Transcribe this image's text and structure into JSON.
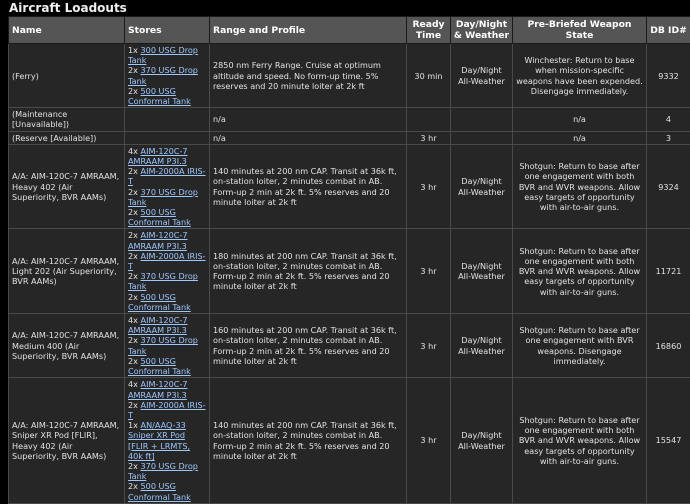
{
  "page": {
    "title": "Aircraft Loadouts"
  },
  "columns": [
    "Name",
    "Stores",
    "Range and Profile",
    "Ready Time",
    "Day/Night & Weather",
    "Pre-Briefed Weapon State",
    "DB ID#"
  ],
  "rows": [
    {
      "name": "(Ferry)",
      "stores": [
        {
          "qty": "1x",
          "item": "300 USG Drop Tank"
        },
        {
          "qty": "2x",
          "item": "370 USG Drop Tank"
        },
        {
          "qty": "2x",
          "item": "500 USG Conformal Tank"
        }
      ],
      "range": "2850 nm Ferry Range. Cruise at optimum altitude and speed. No form-up time. 5% reserves and 20 minute loiter at 2k ft",
      "ready": "30 min",
      "weather": "Day/Night All-Weather",
      "weapon_state": "Winchester: Return to base when mission-specific weapons have been expended. Disengage immediately.",
      "dbid": "9332"
    },
    {
      "name": "(Maintenance [Unavailable])",
      "stores": [],
      "range": "n/a",
      "ready": "",
      "weather": "",
      "weapon_state": "n/a",
      "dbid": "4"
    },
    {
      "name": "(Reserve [Available])",
      "stores": [],
      "range": "n/a",
      "ready": "3 hr",
      "weather": "",
      "weapon_state": "n/a",
      "dbid": "3"
    },
    {
      "name": "A/A: AIM-120C-7 AMRAAM, Heavy 402 (Air Superiority, BVR AAMs)",
      "stores": [
        {
          "qty": "4x",
          "item": "AIM-120C-7 AMRAAM P3I.3"
        },
        {
          "qty": "2x",
          "item": "AIM-2000A IRIS-T"
        },
        {
          "qty": "2x",
          "item": "370 USG Drop Tank"
        },
        {
          "qty": "2x",
          "item": "500 USG Conformal Tank"
        }
      ],
      "range": "140 minutes at 200 nm CAP. Transit at 36k ft, on-station loiter, 2 minutes combat in AB. Form-up 2 min at 2k ft. 5% reserves and 20 minute loiter at 2k ft",
      "ready": "3 hr",
      "weather": "Day/Night All-Weather",
      "weapon_state": "Shotgun: Return to base after one engagement with both BVR and WVR weapons. Allow easy targets of opportunity with air-to-air guns.",
      "dbid": "9324"
    },
    {
      "name": "A/A: AIM-120C-7 AMRAAM, Light 202 (Air Superiority, BVR AAMs)",
      "stores": [
        {
          "qty": "2x",
          "item": "AIM-120C-7 AMRAAM P3I.3"
        },
        {
          "qty": "2x",
          "item": "AIM-2000A IRIS-T"
        },
        {
          "qty": "2x",
          "item": "370 USG Drop Tank"
        },
        {
          "qty": "2x",
          "item": "500 USG Conformal Tank"
        }
      ],
      "range": "180 minutes at 200 nm CAP. Transit at 36k ft, on-station loiter, 2 minutes combat in AB. Form-up 2 min at 2k ft. 5% reserves and 20 minute loiter at 2k ft",
      "ready": "3 hr",
      "weather": "Day/Night All-Weather",
      "weapon_state": "Shotgun: Return to base after one engagement with both BVR and WVR weapons. Allow easy targets of opportunity with air-to-air guns.",
      "dbid": "11721"
    },
    {
      "name": "A/A: AIM-120C-7 AMRAAM, Medium 400 (Air Superiority, BVR AAMs)",
      "stores": [
        {
          "qty": "4x",
          "item": "AIM-120C-7 AMRAAM P3I.3"
        },
        {
          "qty": "2x",
          "item": "370 USG Drop Tank"
        },
        {
          "qty": "2x",
          "item": "500 USG Conformal Tank"
        }
      ],
      "range": "160 minutes at 200 nm CAP. Transit at 36k ft, on-station loiter, 2 minutes combat in AB. Form-up 2 min at 2k ft. 5% reserves and 20 minute loiter at 2k ft",
      "ready": "3 hr",
      "weather": "Day/Night All-Weather",
      "weapon_state": "Shotgun: Return to base after one engagement with BVR weapons. Disengage immediately.",
      "dbid": "16860"
    },
    {
      "name": "A/A: AIM-120C-7 AMRAAM, Sniper XR Pod [FLIR], Heavy 402 (Air Superiority, BVR AAMs)",
      "stores": [
        {
          "qty": "4x",
          "item": "AIM-120C-7 AMRAAM P3I.3"
        },
        {
          "qty": "2x",
          "item": "AIM-2000A IRIS-T"
        },
        {
          "qty": "1x",
          "item": "AN/AAQ-33 Sniper XR Pod [FLIR + LRMTS, 40k ft]"
        },
        {
          "qty": "2x",
          "item": "370 USG Drop Tank"
        },
        {
          "qty": "2x",
          "item": "500 USG Conformal Tank"
        }
      ],
      "range": "140 minutes at 200 nm CAP. Transit at 36k ft, on-station loiter, 2 minutes combat in AB. Form-up 2 min at 2k ft. 5% reserves and 20 minute loiter at 2k ft",
      "ready": "3 hr",
      "weather": "Day/Night All-Weather",
      "weapon_state": "Shotgun: Return to base after one engagement with both BVR and WVR weapons. Allow easy targets of opportunity with air-to-air guns.",
      "dbid": "15547"
    }
  ]
}
